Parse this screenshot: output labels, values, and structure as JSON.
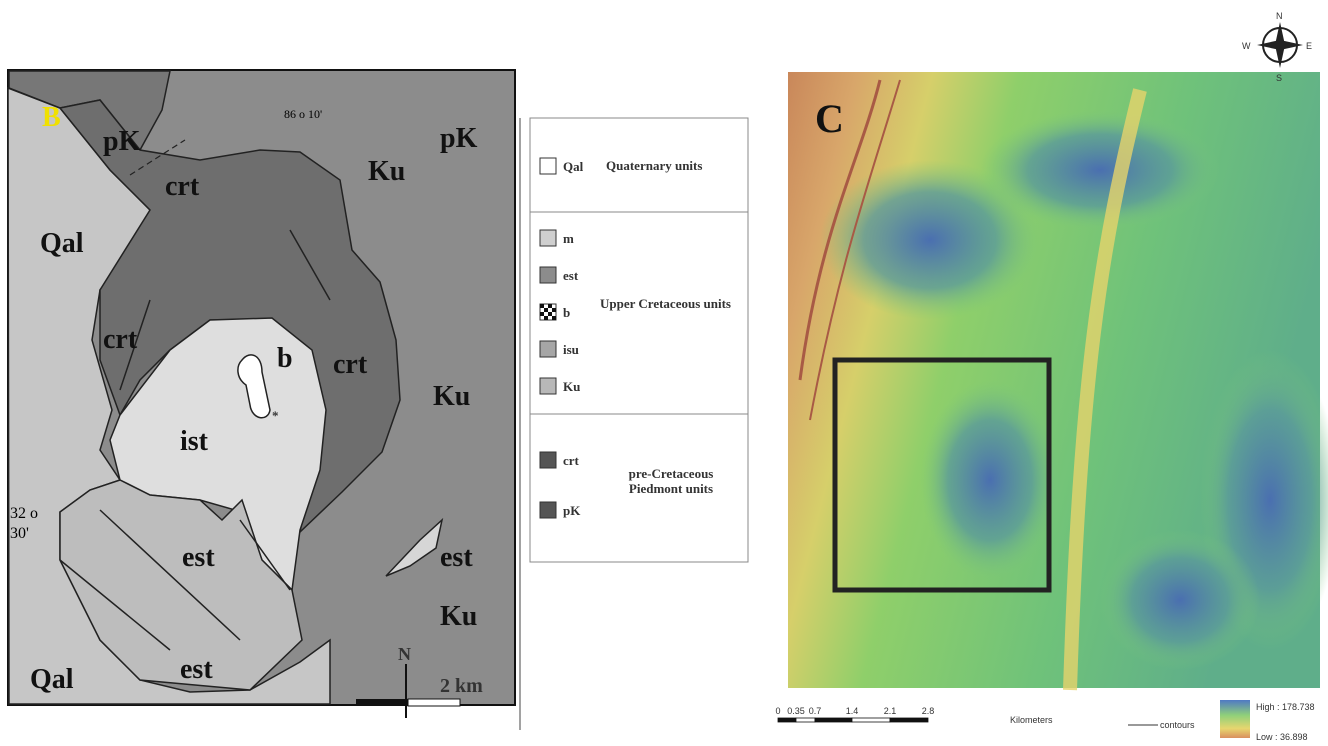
{
  "panel_b": {
    "label": "B",
    "map_labels": [
      "pK",
      "pK",
      "crt",
      "Ku",
      "Qal",
      "crt",
      "b",
      "crt",
      "Ku",
      "ist",
      "est",
      "est",
      "Ku",
      "Qal",
      "est",
      "*"
    ],
    "coords": [
      "86 o 10'",
      "32 o",
      "30'"
    ],
    "north": "N",
    "scale": "2 km"
  },
  "legend": {
    "groups": [
      {
        "items": [
          "Qal"
        ],
        "title": "Quaternary units"
      },
      {
        "items": [
          "m",
          "est",
          "b",
          "isu",
          "Ku"
        ],
        "title": "Upper Cretaceous units"
      },
      {
        "items": [
          "crt",
          "pK"
        ],
        "title": "pre-Cretaceous Piedmont units"
      }
    ]
  },
  "panel_c": {
    "label": "C",
    "scale_ticks": [
      "0",
      "0.35",
      "0.7",
      "1.4",
      "2.1",
      "2.8"
    ],
    "scale_unit": "Kilometers",
    "contours": "contours",
    "high": "High : 178.738",
    "low": "Low : 36.898",
    "compass": [
      "N",
      "S",
      "W",
      "E"
    ]
  }
}
